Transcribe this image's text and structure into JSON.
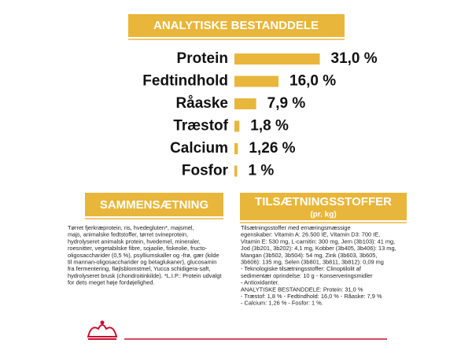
{
  "chart_data": {
    "type": "bar",
    "orientation": "horizontal",
    "title": "ANALYTISKE BESTANDDELE",
    "color": "#e8b63a",
    "categories": [
      "Protein",
      "Fedtindhold",
      "Råaske",
      "Træstof",
      "Calcium",
      "Fosfor"
    ],
    "values": [
      31.0,
      16.0,
      7.9,
      1.8,
      1.26,
      1
    ],
    "value_labels": [
      "31,0 %",
      "16,0 %",
      "7,9 %",
      "1,8 %",
      "1,26 %",
      "1 %"
    ]
  },
  "composition": {
    "title": "SAMMENSÆTNING",
    "lines": [
      "Tørret fjerkræprotein, ris, hvedegluten*, majsmel,",
      "majs, animalske fedtstoffer, tørret svineprotein,",
      "hydrolyseret animalsk protein, hvedemel, mineraler,",
      "roesnitter, vegetabilske fibre, sojaolie, fiskeolie, fructo-",
      "oligosaccharider (0,5 %), psylliumskaller og -frø, gær (kilde",
      "til mannan-oligosaccharider og betaglukaner), glucosamin",
      "fra fermentering, fløjlsblomstmel, Yucca schidigera-saft,",
      "hydrolyseret brusk (chondroitinkilde). *L.I.P.: Protein udvalgt",
      "for dets meget høje fordøjelighed."
    ]
  },
  "additives": {
    "title": "TILSÆTNINGSSTOFFER",
    "subtitle": "(pr. kg)",
    "lines": [
      "Tilsætningsstoffer med ernæringsmæssige",
      "egenskaber: Vitamin A: 26.500 IE, Vitamin D3: 700 IE,",
      "Vitamin E: 530 mg, L-carnitin: 300 mg, Jern (3b103): 41 mg,",
      "Jod (3b201, 3b202): 4,1 mg, Kobber (3b405, 3b406): 13 mg,",
      "Mangan (3b502, 3b504): 54 mg, Zink (3b603, 3b605,",
      "3b606): 135 mg, Selen (3b801, 3b811, 3b812): 0,09 mg",
      "- Teknologiske tilsætningsstoffer: Clinoptilolit af",
      "sedimentær oprindelse: 10 g - Konserveringsmidler",
      "- Antioxidanter.",
      "ANALYTISKE BESTANDDELE: Protein: 31,0 %",
      "- Træstof: 1,8 % - Fedtindhold: 16,0 % - Råaske: 7,9 %",
      "- Calcium: 1,26 % - Fosfor: 1 %."
    ]
  }
}
